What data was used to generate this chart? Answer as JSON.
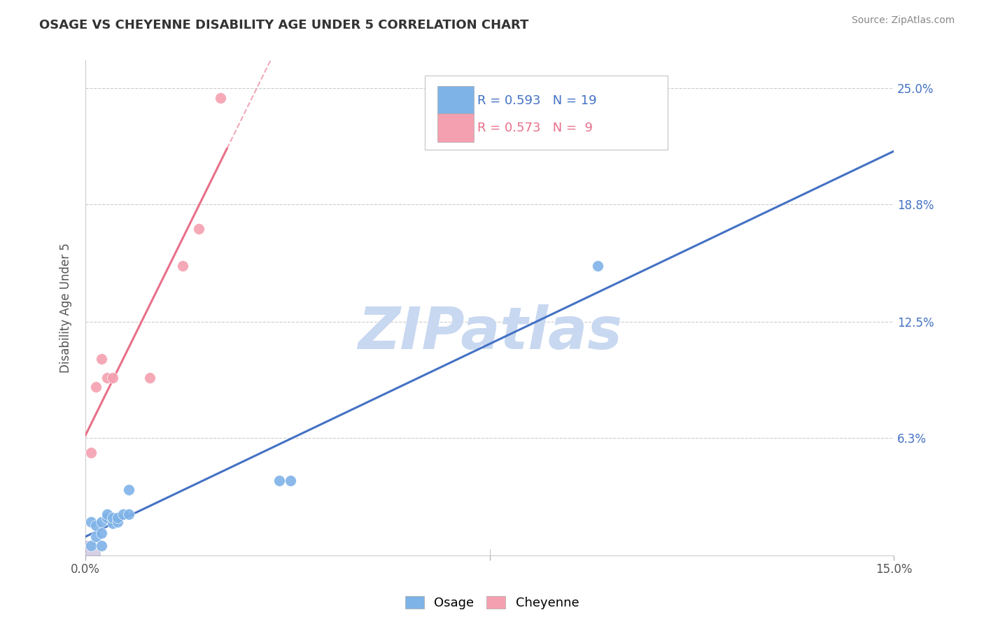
{
  "title": "OSAGE VS CHEYENNE DISABILITY AGE UNDER 5 CORRELATION CHART",
  "source_text": "Source: ZipAtlas.com",
  "ylabel": "Disability Age Under 5",
  "xlim": [
    0.0,
    0.15
  ],
  "ylim": [
    0.0,
    0.265
  ],
  "ytick_labels": [
    "6.3%",
    "12.5%",
    "18.8%",
    "25.0%"
  ],
  "ytick_positions": [
    0.063,
    0.125,
    0.188,
    0.25
  ],
  "osage_x": [
    0.001,
    0.001,
    0.002,
    0.002,
    0.003,
    0.003,
    0.003,
    0.004,
    0.004,
    0.005,
    0.005,
    0.006,
    0.006,
    0.007,
    0.008,
    0.008,
    0.036,
    0.038,
    0.095
  ],
  "osage_y": [
    0.005,
    0.018,
    0.01,
    0.016,
    0.005,
    0.012,
    0.018,
    0.02,
    0.022,
    0.017,
    0.02,
    0.018,
    0.02,
    0.022,
    0.022,
    0.035,
    0.04,
    0.04,
    0.155
  ],
  "cheyenne_x": [
    0.001,
    0.002,
    0.003,
    0.004,
    0.005,
    0.012,
    0.018,
    0.021,
    0.025
  ],
  "cheyenne_y": [
    0.055,
    0.09,
    0.105,
    0.095,
    0.095,
    0.095,
    0.155,
    0.175,
    0.245
  ],
  "osage_R": 0.593,
  "osage_N": 19,
  "cheyenne_R": 0.573,
  "cheyenne_N": 9,
  "osage_color": "#7EB3E8",
  "cheyenne_color": "#F4A0B0",
  "osage_line_color": "#4472C4",
  "cheyenne_line_color": "#E8708A",
  "marker_size": 130,
  "watermark_text": "ZIPatlas",
  "watermark_color": "#C8D8F0",
  "background_color": "#ffffff",
  "grid_color": "#cccccc",
  "title_color": "#333333",
  "right_axis_color": "#4472C4",
  "legend_osage_text_color": "#4472C4",
  "legend_cheyenne_text_color": "#E8708A",
  "legend_N_osage_color": "#FF3333",
  "legend_N_cheyenne_color": "#FF3333"
}
